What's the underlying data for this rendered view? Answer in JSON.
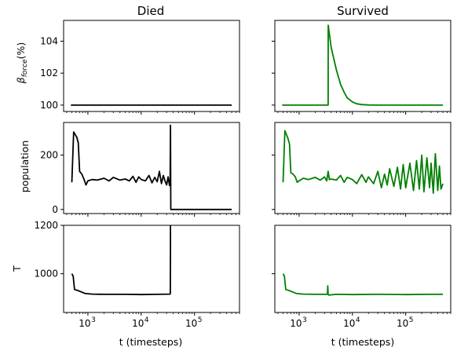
{
  "figure": {
    "column_titles": [
      "Died",
      "Survived"
    ],
    "row_labels": [
      "β_force(%)",
      "population",
      "T"
    ],
    "row_label_parts": {
      "beta_symbol": "β",
      "beta_sub": "force",
      "beta_suffix": "(%)"
    },
    "xlabel": "t (timesteps)"
  },
  "chart_data": [
    {
      "type": "line",
      "column": "Died",
      "row": "β_force(%)",
      "ylabel": "β_force(%)",
      "xscale": "log",
      "xlim": [
        350,
        700000
      ],
      "ylim": [
        99.6,
        105.3
      ],
      "yticks": [
        100,
        102,
        104
      ],
      "grid": false,
      "series": [
        {
          "color": "#000000",
          "x": [
            480,
            50000,
            500000
          ],
          "y": [
            100,
            100,
            100
          ]
        }
      ]
    },
    {
      "type": "line",
      "column": "Survived",
      "row": "β_force(%)",
      "xscale": "log",
      "xlim": [
        350,
        700000
      ],
      "ylim": [
        99.6,
        105.3
      ],
      "yticks": [
        100,
        102,
        104
      ],
      "grid": false,
      "series": [
        {
          "color": "#008000",
          "x": [
            480,
            3500,
            3520,
            4000,
            5000,
            6000,
            7000,
            8000,
            10000,
            12000,
            15000,
            20000,
            30000,
            500000
          ],
          "y": [
            100,
            100,
            105,
            103.6,
            102.2,
            101.3,
            100.8,
            100.45,
            100.2,
            100.08,
            100.03,
            100.01,
            100,
            100
          ]
        }
      ]
    },
    {
      "type": "line",
      "column": "Died",
      "row": "population",
      "ylabel": "population",
      "xscale": "log",
      "xlim": [
        350,
        700000
      ],
      "ylim": [
        -15,
        320
      ],
      "yticks": [
        0,
        200
      ],
      "grid": false,
      "series": [
        {
          "color": "#000000",
          "x": [
            500,
            540,
            620,
            660,
            700,
            770,
            850,
            920,
            1000,
            1200,
            1500,
            2000,
            2500,
            3000,
            4000,
            5000,
            6000,
            7000,
            8000,
            9000,
            10000,
            12000,
            14000,
            16000,
            18000,
            20000,
            22000,
            24000,
            26000,
            28000,
            30000,
            32000,
            34000,
            35000,
            35500,
            36000,
            100000,
            500000
          ],
          "y": [
            100,
            285,
            265,
            245,
            140,
            130,
            110,
            90,
            105,
            110,
            108,
            115,
            105,
            118,
            108,
            112,
            105,
            122,
            100,
            120,
            110,
            105,
            125,
            98,
            118,
            102,
            140,
            95,
            125,
            105,
            90,
            120,
            88,
            110,
            310,
            0,
            0,
            0
          ]
        }
      ]
    },
    {
      "type": "line",
      "column": "Survived",
      "row": "population",
      "xscale": "log",
      "xlim": [
        350,
        700000
      ],
      "ylim": [
        -15,
        320
      ],
      "yticks": [
        0,
        200
      ],
      "grid": false,
      "series": [
        {
          "color": "#008000",
          "x": [
            500,
            540,
            620,
            660,
            700,
            770,
            850,
            920,
            1000,
            1200,
            1500,
            2000,
            2500,
            3000,
            3300,
            3500,
            3700,
            4000,
            5000,
            6000,
            7000,
            8000,
            10000,
            12000,
            15000,
            18000,
            20000,
            25000,
            30000,
            35000,
            40000,
            45000,
            50000,
            60000,
            70000,
            80000,
            90000,
            100000,
            120000,
            140000,
            160000,
            180000,
            200000,
            220000,
            250000,
            280000,
            300000,
            330000,
            360000,
            400000,
            430000,
            460000,
            500000
          ],
          "y": [
            100,
            290,
            260,
            240,
            135,
            130,
            120,
            100,
            105,
            115,
            110,
            118,
            108,
            120,
            105,
            140,
            110,
            112,
            108,
            125,
            100,
            118,
            110,
            95,
            128,
            100,
            120,
            95,
            140,
            80,
            130,
            90,
            150,
            85,
            155,
            75,
            165,
            80,
            170,
            70,
            180,
            75,
            200,
            65,
            190,
            80,
            170,
            60,
            205,
            70,
            160,
            75,
            95
          ]
        }
      ]
    },
    {
      "type": "line",
      "column": "Died",
      "row": "T",
      "ylabel": "T",
      "xscale": "log",
      "xlim": [
        350,
        700000
      ],
      "ylim": [
        840,
        1200
      ],
      "yticks": [
        1000,
        1200
      ],
      "grid": false,
      "series": [
        {
          "color": "#000000",
          "x": [
            500,
            530,
            560,
            700,
            900,
            1200,
            2000,
            5000,
            10000,
            20000,
            35000,
            35200,
            35400,
            35500
          ],
          "y": [
            1000,
            990,
            935,
            928,
            918,
            916,
            915,
            915,
            914,
            915,
            916,
            920,
            1100,
            1200
          ]
        }
      ]
    },
    {
      "type": "line",
      "column": "Survived",
      "row": "T",
      "xscale": "log",
      "xlim": [
        350,
        700000
      ],
      "ylim": [
        840,
        1200
      ],
      "yticks": [
        1000
      ],
      "grid": false,
      "series": [
        {
          "color": "#008000",
          "x": [
            500,
            530,
            560,
            700,
            900,
            1200,
            2000,
            3400,
            3450,
            3500,
            3600,
            5000,
            10000,
            30000,
            100000,
            300000,
            500000
          ],
          "y": [
            1000,
            990,
            935,
            928,
            918,
            916,
            915,
            915,
            950,
            915,
            912,
            915,
            914,
            915,
            914,
            915,
            915
          ]
        }
      ]
    }
  ]
}
